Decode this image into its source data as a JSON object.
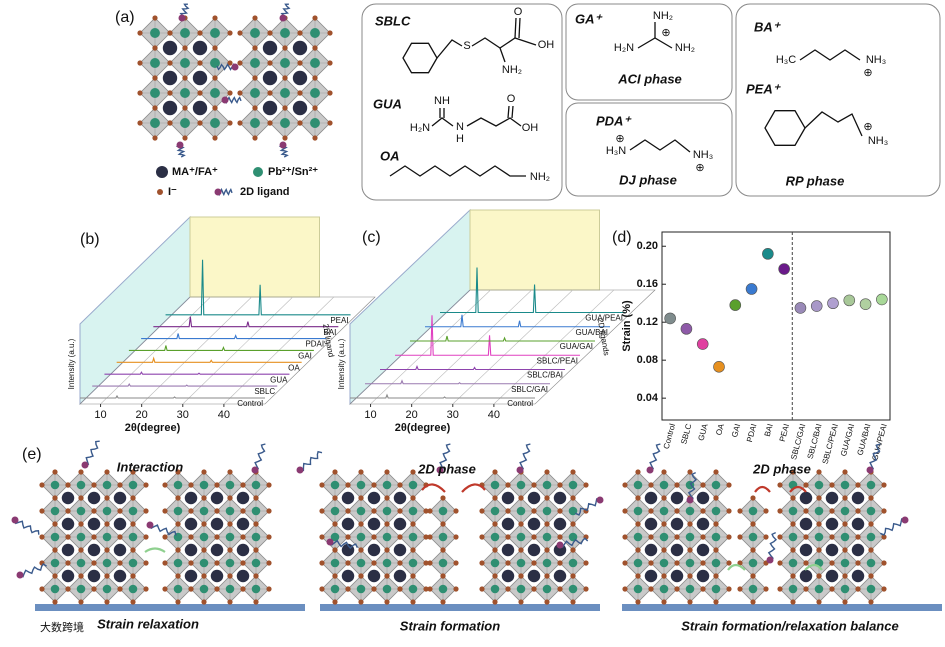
{
  "panel_labels": [
    "(a)",
    "(b)",
    "(c)",
    "(d)",
    "(e)"
  ],
  "panel_a": {
    "legend": [
      "MA⁺/FA⁺",
      "Pb²⁺/Sn²⁺",
      "I⁻",
      "2D ligand"
    ],
    "molecules": [
      {
        "name": "SBLC",
        "atoms": [
          "S",
          "OH",
          "O",
          "NH₂"
        ]
      },
      {
        "name": "GUA",
        "atoms": [
          "NH",
          "H₂N",
          "N",
          "H",
          "O",
          "OH"
        ]
      },
      {
        "name": "OA",
        "atoms": [
          "NH₂"
        ]
      }
    ],
    "phases": [
      {
        "ions": [
          {
            "name": "GA⁺",
            "atoms": [
              "NH₂",
              "H₂N",
              "NH₂",
              "⊕"
            ]
          }
        ],
        "phase": "ACI phase"
      },
      {
        "ions": [
          {
            "name": "PDA⁺",
            "atoms": [
              "H₃N",
              "⊕",
              "NH₃",
              "⊕"
            ]
          }
        ],
        "phase": "DJ phase"
      },
      {
        "ions": [
          {
            "name": "BA⁺",
            "atoms": [
              "H₃C",
              "NH₃",
              "⊕"
            ]
          },
          {
            "name": "PEA⁺",
            "atoms": [
              "NH₃",
              "⊕"
            ]
          }
        ],
        "phase": "RP phase"
      }
    ]
  },
  "panel_b": {
    "ylabel": "Intensity (a.u.)",
    "xlabel": "2θ(degree)",
    "zlabel": "2D ligand",
    "xlim": [
      5,
      50
    ],
    "xticks": [
      10,
      20,
      30,
      40
    ],
    "ylim": [
      0,
      60
    ],
    "peak_positions": [
      14,
      28
    ],
    "series": [
      {
        "name": "Control",
        "color": "#8a8a8a",
        "peaks": [
          2,
          1
        ]
      },
      {
        "name": "SBLC",
        "color": "#9a7ab0",
        "peaks": [
          2,
          1
        ]
      },
      {
        "name": "GUA",
        "color": "#8e44ad",
        "peaks": [
          2,
          1
        ]
      },
      {
        "name": "OA",
        "color": "#e69020",
        "peaks": [
          4,
          2
        ]
      },
      {
        "name": "GAI",
        "color": "#5aa02c",
        "peaks": [
          5,
          3
        ]
      },
      {
        "name": "PDAI",
        "color": "#3a7ad0",
        "peaks": [
          5,
          3
        ]
      },
      {
        "name": "BAI",
        "color": "#7a2a8a",
        "peaks": [
          10,
          5
        ]
      },
      {
        "name": "PEAI",
        "color": "#1a8a8a",
        "peaks": [
          55,
          30
        ]
      }
    ]
  },
  "panel_c": {
    "ylabel": "Intensity (a.u.)",
    "xlabel": "2θ(degree)",
    "zlabel": "2D ligands",
    "xlim": [
      5,
      50
    ],
    "xticks": [
      10,
      20,
      30,
      40
    ],
    "ylim": [
      0,
      60
    ],
    "peak_positions": [
      14,
      28
    ],
    "series": [
      {
        "name": "Control",
        "color": "#8a8a8a",
        "peaks": [
          3,
          1
        ]
      },
      {
        "name": "SBLC/GAI",
        "color": "#9a7ab0",
        "peaks": [
          3,
          1
        ]
      },
      {
        "name": "SBLC/BAI",
        "color": "#8e44ad",
        "peaks": [
          3,
          2
        ]
      },
      {
        "name": "SBLC/PEAI",
        "color": "#e040c0",
        "peaks": [
          40,
          20
        ]
      },
      {
        "name": "GUA/GAI",
        "color": "#5aa02c",
        "peaks": [
          5,
          3
        ]
      },
      {
        "name": "GUA/BAI",
        "color": "#3a7ad0",
        "peaks": [
          12,
          6
        ]
      },
      {
        "name": "GUA/PEAI",
        "color": "#1a8a8a",
        "peaks": [
          45,
          28
        ]
      }
    ]
  },
  "chart_data": {
    "type": "scatter",
    "ylabel": "Strain (%)",
    "categories": [
      "Control",
      "SBLC",
      "GUA",
      "OA",
      "GAI",
      "PDAI",
      "BAI",
      "PEAI",
      "SBLC/GAI",
      "SBLC/BAI",
      "SBLC/PEAI",
      "GUA/GAI",
      "GUA/BAI",
      "GUA/PEAI"
    ],
    "values": [
      0.124,
      0.113,
      0.097,
      0.073,
      0.138,
      0.155,
      0.192,
      0.176,
      0.135,
      0.137,
      0.14,
      0.143,
      0.139,
      0.144
    ],
    "colors": [
      "#7f8c8d",
      "#8e5aa8",
      "#e040a0",
      "#e69020",
      "#5aa02c",
      "#3a7ad0",
      "#1a8a8a",
      "#6a1a8a",
      "#9a8ab8",
      "#a898c8",
      "#b0a0d0",
      "#a8c898",
      "#b0d0a0",
      "#a8d898"
    ],
    "ylim": [
      0.017,
      0.215
    ],
    "yticks": [
      0.04,
      0.08,
      0.12,
      0.16,
      {
        "value": 0.2,
        "label": "0.20"
      }
    ]
  },
  "panel_e": {
    "annotations": [
      "Interaction",
      "2D phase",
      "2D phase"
    ],
    "captions": [
      "Strain relaxation",
      "Strain formation",
      "Strain formation/relaxation balance"
    ]
  },
  "watermark": "大数跨境"
}
